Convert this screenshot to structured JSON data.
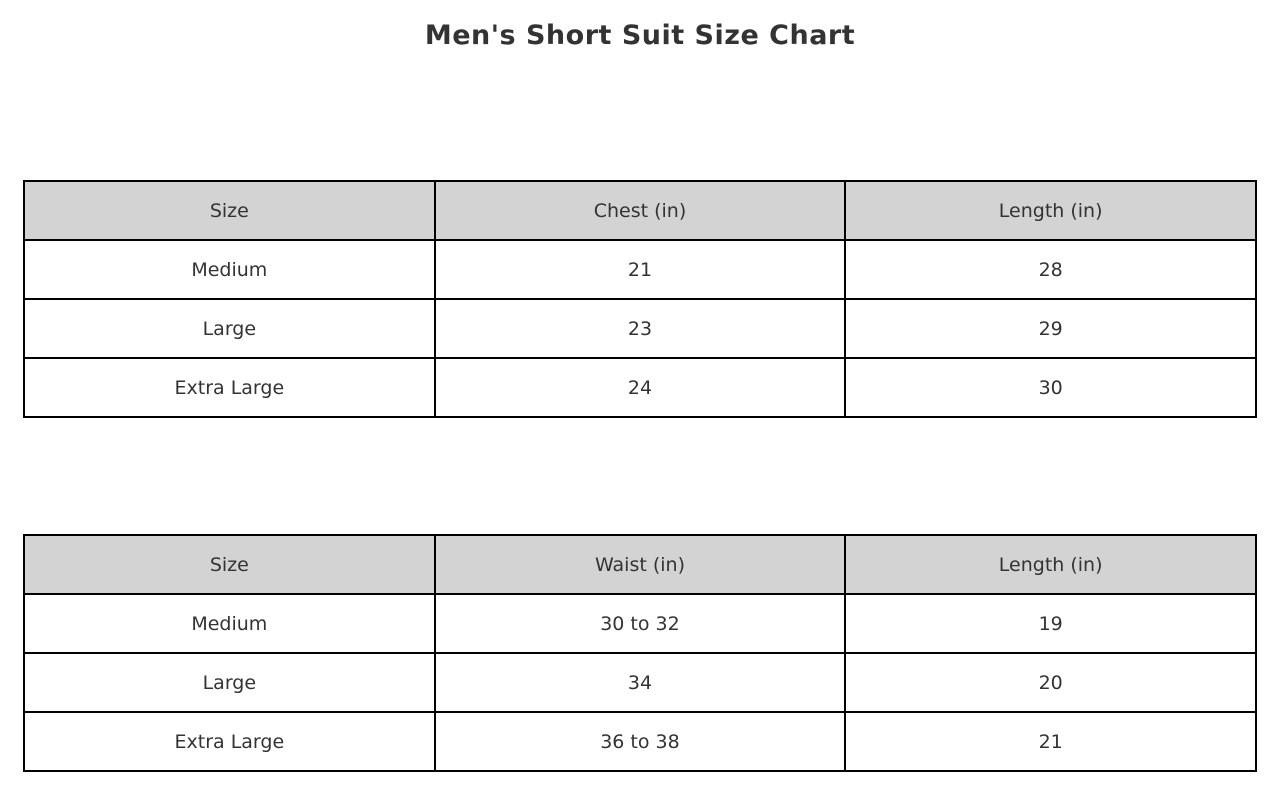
{
  "page": {
    "title": "Men's Short Suit Size Chart",
    "background": "#ffffff"
  },
  "colors": {
    "header_bg": "#d3d3d3",
    "cell_bg": "#ffffff",
    "border": "#000000",
    "text": "#333333"
  },
  "tables": [
    {
      "name": "chest-size-table",
      "headers": [
        "Size",
        "Chest (in)",
        "Length (in)"
      ],
      "rows": [
        [
          "Medium",
          "21",
          "28"
        ],
        [
          "Large",
          "23",
          "29"
        ],
        [
          "Extra Large",
          "24",
          "30"
        ]
      ]
    },
    {
      "name": "waist-size-table",
      "headers": [
        "Size",
        "Waist (in)",
        "Length (in)"
      ],
      "rows": [
        [
          "Medium",
          "30 to 32",
          "19"
        ],
        [
          "Large",
          "34",
          "20"
        ],
        [
          "Extra Large",
          "36 to 38",
          "21"
        ]
      ]
    }
  ],
  "chart_data": [
    {
      "type": "table",
      "title": "Men's Short Suit Size Chart",
      "columns": [
        "Size",
        "Chest (in)",
        "Length (in)"
      ],
      "rows": [
        [
          "Medium",
          21,
          28
        ],
        [
          "Large",
          23,
          29
        ],
        [
          "Extra Large",
          24,
          30
        ]
      ],
      "layout_hints": {
        "header_background": "#d3d3d3",
        "border_color": "#000000",
        "position": "upper table"
      }
    },
    {
      "type": "table",
      "title": "",
      "columns": [
        "Size",
        "Waist (in)",
        "Length (in)"
      ],
      "rows": [
        [
          "Medium",
          "30 to 32",
          19
        ],
        [
          "Large",
          34,
          20
        ],
        [
          "Extra Large",
          "36 to 38",
          21
        ]
      ],
      "layout_hints": {
        "header_background": "#d3d3d3",
        "border_color": "#000000",
        "position": "lower table"
      }
    }
  ]
}
